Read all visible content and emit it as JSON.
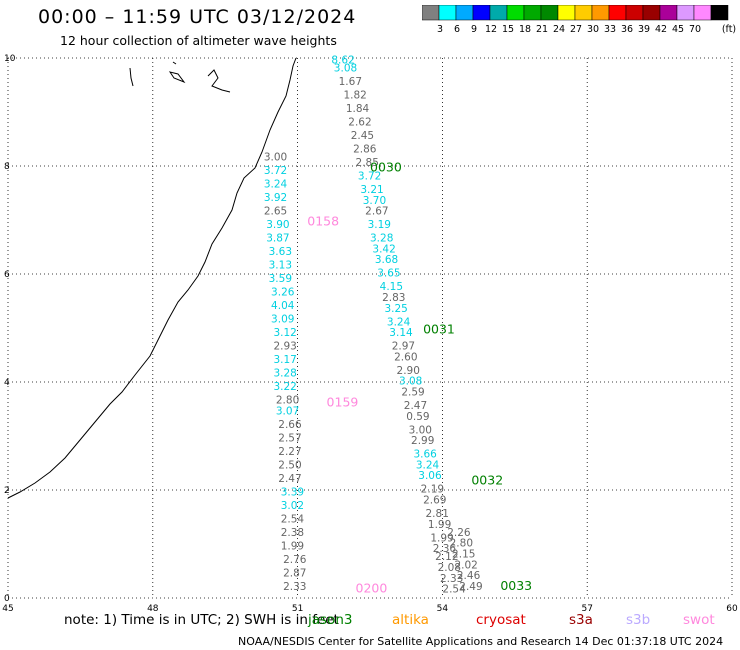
{
  "header": {
    "title": "00:00 – 11:59 UTC 03/12/2024",
    "subtitle": "12 hour collection of altimeter wave heights"
  },
  "legend": {
    "colors": [
      "#808080",
      "#00ffff",
      "#00aaff",
      "#0000ff",
      "#00aaaa",
      "#00dd00",
      "#00aa00",
      "#008800",
      "#ffff00",
      "#ffcc00",
      "#ff9900",
      "#ff0000",
      "#cc0000",
      "#990000",
      "#aa0099",
      "#dd99ff",
      "#ff88ff",
      "#000000"
    ],
    "labels": [
      "3",
      "6",
      "9",
      "12",
      "15",
      "18",
      "21",
      "24",
      "27",
      "30",
      "33",
      "36",
      "39",
      "42",
      "45",
      "70"
    ],
    "unit": "(ft)"
  },
  "map": {
    "x_ticks": [
      "45",
      "48",
      "51",
      "54",
      "57",
      "60"
    ],
    "y_ticks": [
      "0",
      "2",
      "4",
      "6",
      "8",
      "10"
    ],
    "x_range": [
      45,
      60
    ],
    "y_range": [
      0,
      10
    ]
  },
  "tracks": [
    {
      "color": "#00bcd4",
      "pass_label": "0030",
      "pass_color": "#008000",
      "pass_lon": 52.5,
      "pass_lat": 7.9,
      "values": [
        {
          "t": "8.62",
          "c": "#00d0e0",
          "lon": 51.7,
          "lat": 9.9
        },
        {
          "t": "3.08",
          "c": "#00d0e0",
          "lon": 51.75,
          "lat": 9.75
        },
        {
          "t": "1.67",
          "c": "#666666",
          "lon": 51.85,
          "lat": 9.5
        },
        {
          "t": "1.82",
          "c": "#666666",
          "lon": 51.95,
          "lat": 9.25
        },
        {
          "t": "1.84",
          "c": "#666666",
          "lon": 52.0,
          "lat": 9.0
        },
        {
          "t": "2.62",
          "c": "#666666",
          "lon": 52.05,
          "lat": 8.75
        },
        {
          "t": "2.45",
          "c": "#666666",
          "lon": 52.1,
          "lat": 8.5
        },
        {
          "t": "2.86",
          "c": "#666666",
          "lon": 52.15,
          "lat": 8.25
        },
        {
          "t": "2.85",
          "c": "#666666",
          "lon": 52.2,
          "lat": 8.0
        },
        {
          "t": "3.72",
          "c": "#00d0e0",
          "lon": 52.25,
          "lat": 7.75
        },
        {
          "t": "3.21",
          "c": "#00d0e0",
          "lon": 52.3,
          "lat": 7.5
        },
        {
          "t": "3.70",
          "c": "#00d0e0",
          "lon": 52.35,
          "lat": 7.3
        },
        {
          "t": "2.67",
          "c": "#666666",
          "lon": 52.4,
          "lat": 7.1
        },
        {
          "t": "3.19",
          "c": "#00d0e0",
          "lon": 52.45,
          "lat": 6.85
        },
        {
          "t": "3.28",
          "c": "#00d0e0",
          "lon": 52.5,
          "lat": 6.6
        },
        {
          "t": "3.42",
          "c": "#00d0e0",
          "lon": 52.55,
          "lat": 6.4
        },
        {
          "t": "3.68",
          "c": "#00d0e0",
          "lon": 52.6,
          "lat": 6.2
        },
        {
          "t": "3.65",
          "c": "#00d0e0",
          "lon": 52.65,
          "lat": 5.95
        },
        {
          "t": "4.15",
          "c": "#00d0e0",
          "lon": 52.7,
          "lat": 5.7
        },
        {
          "t": "2.83",
          "c": "#666666",
          "lon": 52.75,
          "lat": 5.5
        },
        {
          "t": "3.25",
          "c": "#00d0e0",
          "lon": 52.8,
          "lat": 5.3
        },
        {
          "t": "3.24",
          "c": "#00d0e0",
          "lon": 52.85,
          "lat": 5.05
        },
        {
          "t": "3.14",
          "c": "#00d0e0",
          "lon": 52.9,
          "lat": 4.85
        },
        {
          "t": "2.97",
          "c": "#666666",
          "lon": 52.95,
          "lat": 4.6
        },
        {
          "t": "2.60",
          "c": "#666666",
          "lon": 53.0,
          "lat": 4.4
        },
        {
          "t": "2.90",
          "c": "#666666",
          "lon": 53.05,
          "lat": 4.15
        },
        {
          "t": "3.08",
          "c": "#00d0e0",
          "lon": 53.1,
          "lat": 3.95
        },
        {
          "t": "2.59",
          "c": "#666666",
          "lon": 53.15,
          "lat": 3.75
        },
        {
          "t": "2.47",
          "c": "#666666",
          "lon": 53.2,
          "lat": 3.5
        },
        {
          "t": "0.59",
          "c": "#666666",
          "lon": 53.25,
          "lat": 3.3
        },
        {
          "t": "3.00",
          "c": "#666666",
          "lon": 53.3,
          "lat": 3.05
        },
        {
          "t": "2.99",
          "c": "#666666",
          "lon": 53.35,
          "lat": 2.85
        },
        {
          "t": "3.66",
          "c": "#00d0e0",
          "lon": 53.4,
          "lat": 2.6
        },
        {
          "t": "3.24",
          "c": "#00d0e0",
          "lon": 53.45,
          "lat": 2.4
        },
        {
          "t": "3.06",
          "c": "#00d0e0",
          "lon": 53.5,
          "lat": 2.2
        },
        {
          "t": "2.19",
          "c": "#666666",
          "lon": 53.55,
          "lat": 1.95
        },
        {
          "t": "2.69",
          "c": "#666666",
          "lon": 53.6,
          "lat": 1.75
        },
        {
          "t": "2.81",
          "c": "#666666",
          "lon": 53.65,
          "lat": 1.5
        },
        {
          "t": "1.99",
          "c": "#666666",
          "lon": 53.7,
          "lat": 1.3
        },
        {
          "t": "1.99",
          "c": "#666666",
          "lon": 53.75,
          "lat": 1.05
        },
        {
          "t": "2.36",
          "c": "#666666",
          "lon": 53.8,
          "lat": 0.85
        },
        {
          "t": "2.12",
          "c": "#666666",
          "lon": 53.85,
          "lat": 0.7
        },
        {
          "t": "2.08",
          "c": "#666666",
          "lon": 53.9,
          "lat": 0.5
        },
        {
          "t": "2.33",
          "c": "#666666",
          "lon": 53.95,
          "lat": 0.3
        },
        {
          "t": "2.54",
          "c": "#666666",
          "lon": 54.0,
          "lat": 0.1
        }
      ]
    },
    {
      "color": "#00bcd4",
      "pass_label": "0031",
      "pass_color": "#008000",
      "pass_lon": 53.6,
      "pass_lat": 4.9,
      "values": []
    },
    {
      "color": "#666666",
      "pass_label": "0032",
      "pass_color": "#008000",
      "pass_lon": 54.6,
      "pass_lat": 2.1,
      "values": [
        {
          "t": "2.26",
          "c": "#666666",
          "lon": 54.1,
          "lat": 1.15
        },
        {
          "t": "2.80",
          "c": "#666666",
          "lon": 54.15,
          "lat": 0.95
        },
        {
          "t": "2.15",
          "c": "#666666",
          "lon": 54.2,
          "lat": 0.75
        },
        {
          "t": "2.02",
          "c": "#666666",
          "lon": 54.25,
          "lat": 0.55
        },
        {
          "t": "2.46",
          "c": "#666666",
          "lon": 54.3,
          "lat": 0.35
        },
        {
          "t": "2.49",
          "c": "#666666",
          "lon": 54.35,
          "lat": 0.15
        }
      ]
    },
    {
      "color": "#666666",
      "pass_label": "0033",
      "pass_color": "#008000",
      "pass_lon": 55.2,
      "pass_lat": 0.15,
      "values": []
    },
    {
      "color": "#ff88dd",
      "pass_label": "0158",
      "pass_color": "#ff88dd",
      "pass_lon": 51.2,
      "pass_lat": 6.9,
      "values": [
        {
          "t": "3.00",
          "c": "#666666",
          "lon": 50.3,
          "lat": 8.1
        },
        {
          "t": "3.72",
          "c": "#00d0e0",
          "lon": 50.3,
          "lat": 7.85
        },
        {
          "t": "3.24",
          "c": "#00d0e0",
          "lon": 50.3,
          "lat": 7.6
        },
        {
          "t": "3.92",
          "c": "#00d0e0",
          "lon": 50.3,
          "lat": 7.35
        },
        {
          "t": "2.65",
          "c": "#666666",
          "lon": 50.3,
          "lat": 7.1
        },
        {
          "t": "3.90",
          "c": "#00d0e0",
          "lon": 50.35,
          "lat": 6.85
        },
        {
          "t": "3.87",
          "c": "#00d0e0",
          "lon": 50.35,
          "lat": 6.6
        },
        {
          "t": "3.63",
          "c": "#00d0e0",
          "lon": 50.4,
          "lat": 6.35
        },
        {
          "t": "3.13",
          "c": "#00d0e0",
          "lon": 50.4,
          "lat": 6.1
        },
        {
          "t": "3.59",
          "c": "#00d0e0",
          "lon": 50.4,
          "lat": 5.85
        },
        {
          "t": "3.26",
          "c": "#00d0e0",
          "lon": 50.45,
          "lat": 5.6
        },
        {
          "t": "4.04",
          "c": "#00d0e0",
          "lon": 50.45,
          "lat": 5.35
        },
        {
          "t": "3.09",
          "c": "#00d0e0",
          "lon": 50.45,
          "lat": 5.1
        },
        {
          "t": "3.12",
          "c": "#00d0e0",
          "lon": 50.5,
          "lat": 4.85
        },
        {
          "t": "2.93",
          "c": "#666666",
          "lon": 50.5,
          "lat": 4.6
        }
      ]
    },
    {
      "color": "#ff88dd",
      "pass_label": "0159",
      "pass_color": "#ff88dd",
      "pass_lon": 51.6,
      "pass_lat": 3.55,
      "values": [
        {
          "t": "3.17",
          "c": "#00d0e0",
          "lon": 50.5,
          "lat": 4.35
        },
        {
          "t": "3.28",
          "c": "#00d0e0",
          "lon": 50.5,
          "lat": 4.1
        },
        {
          "t": "3.22",
          "c": "#00d0e0",
          "lon": 50.5,
          "lat": 3.85
        },
        {
          "t": "2.80",
          "c": "#666666",
          "lon": 50.55,
          "lat": 3.6
        },
        {
          "t": "3.07",
          "c": "#00d0e0",
          "lon": 50.55,
          "lat": 3.4
        },
        {
          "t": "2.66",
          "c": "#666666",
          "lon": 50.6,
          "lat": 3.15
        },
        {
          "t": "2.57",
          "c": "#666666",
          "lon": 50.6,
          "lat": 2.9
        },
        {
          "t": "2.27",
          "c": "#666666",
          "lon": 50.6,
          "lat": 2.65
        },
        {
          "t": "2.50",
          "c": "#666666",
          "lon": 50.6,
          "lat": 2.4
        },
        {
          "t": "2.47",
          "c": "#666666",
          "lon": 50.6,
          "lat": 2.15
        },
        {
          "t": "3.39",
          "c": "#00d0e0",
          "lon": 50.65,
          "lat": 1.9
        },
        {
          "t": "3.02",
          "c": "#00d0e0",
          "lon": 50.65,
          "lat": 1.65
        },
        {
          "t": "2.54",
          "c": "#666666",
          "lon": 50.65,
          "lat": 1.4
        },
        {
          "t": "2.38",
          "c": "#666666",
          "lon": 50.65,
          "lat": 1.15
        },
        {
          "t": "1.99",
          "c": "#666666",
          "lon": 50.65,
          "lat": 0.9
        },
        {
          "t": "2.76",
          "c": "#666666",
          "lon": 50.7,
          "lat": 0.65
        },
        {
          "t": "2.87",
          "c": "#666666",
          "lon": 50.7,
          "lat": 0.4
        },
        {
          "t": "2.33",
          "c": "#666666",
          "lon": 50.7,
          "lat": 0.15
        }
      ]
    },
    {
      "color": "#ff88dd",
      "pass_label": "0200",
      "pass_color": "#ff88dd",
      "pass_lon": 52.2,
      "pass_lat": 0.1,
      "values": []
    }
  ],
  "footer": {
    "note": "note: 1) Time is in UTC; 2) SWH is in feet",
    "satellites": [
      {
        "name": "jason3",
        "color": "#008000"
      },
      {
        "name": "altika",
        "color": "#ff9900"
      },
      {
        "name": "cryosat",
        "color": "#dd0000"
      },
      {
        "name": "s3a",
        "color": "#990000"
      },
      {
        "name": "s3b",
        "color": "#bbaaff"
      },
      {
        "name": "swot",
        "color": "#ff88dd"
      }
    ],
    "credit": "NOAA/NESDIS Center for Satellite Applications and Research    14 Dec 01:37:18 UTC 2024"
  }
}
